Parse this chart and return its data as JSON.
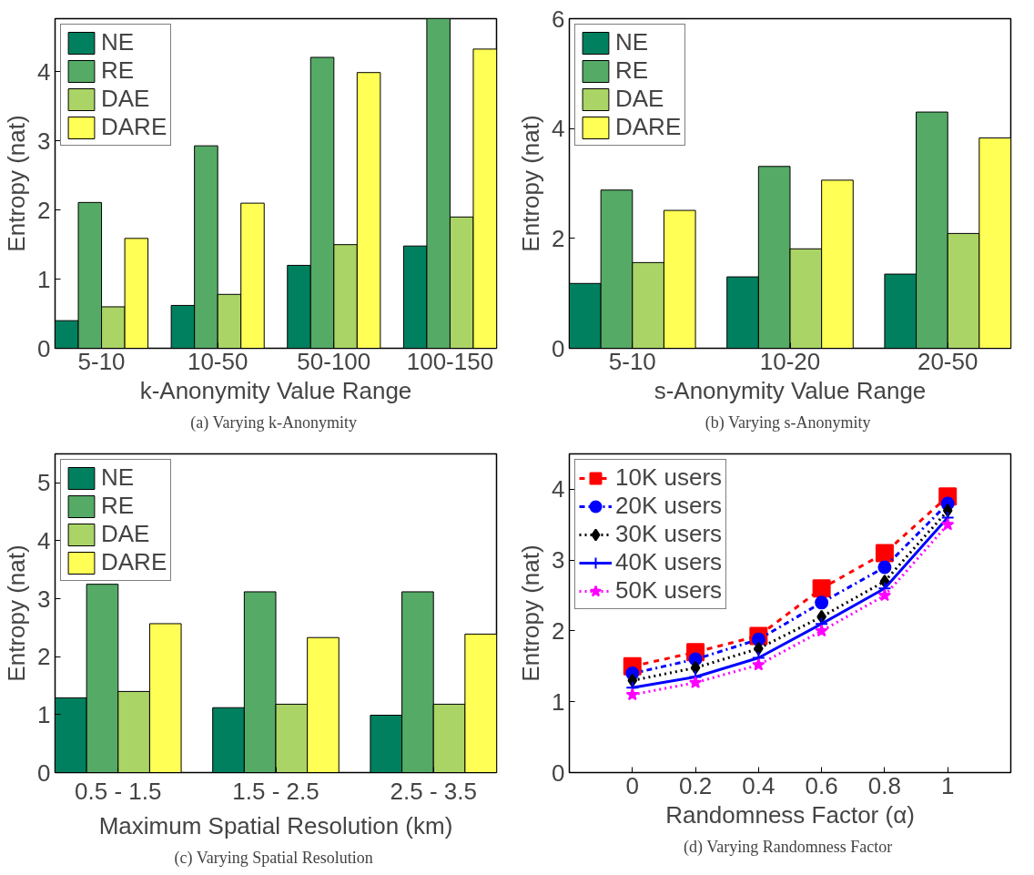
{
  "chart_data": [
    {
      "type": "bar",
      "xlabel": "k-Anonymity Value Range",
      "ylabel": "Entropy (nat)",
      "annotations": [
        "(a)  Varying k-Anonymity"
      ],
      "categories": [
        "5-10",
        "10-50",
        "50-100",
        "100-150"
      ],
      "ylim": [
        0,
        4.77
      ],
      "yticks": [
        0,
        1,
        2,
        3,
        4
      ],
      "grid": false,
      "legend": "top left",
      "series": [
        {
          "name": "NE",
          "color": "#00805f",
          "values": [
            0.4,
            0.62,
            1.2,
            1.48
          ]
        },
        {
          "name": "RE",
          "color": "#55aa66",
          "values": [
            2.11,
            2.93,
            4.21,
            4.77
          ]
        },
        {
          "name": "DAE",
          "color": "#aad466",
          "values": [
            0.6,
            0.78,
            1.5,
            1.9
          ]
        },
        {
          "name": "DARE",
          "color": "#ffff55",
          "values": [
            1.59,
            2.1,
            3.99,
            4.33
          ]
        }
      ]
    },
    {
      "type": "bar",
      "xlabel": "s-Anonymity Value Range",
      "ylabel": "Entropy (nat)",
      "annotations": [
        "(b)  Varying s-Anonymity"
      ],
      "categories": [
        "5-10",
        "10-20",
        "20-50"
      ],
      "ylim": [
        0,
        6
      ],
      "yticks": [
        0,
        2,
        4,
        6
      ],
      "grid": false,
      "legend": "top left",
      "series": [
        {
          "name": "NE",
          "color": "#00805f",
          "values": [
            1.18,
            1.3,
            1.35
          ]
        },
        {
          "name": "RE",
          "color": "#55aa66",
          "values": [
            2.88,
            3.31,
            4.3
          ]
        },
        {
          "name": "DAE",
          "color": "#aad466",
          "values": [
            1.56,
            1.81,
            2.09
          ]
        },
        {
          "name": "DARE",
          "color": "#ffff55",
          "values": [
            2.51,
            3.06,
            3.83
          ]
        }
      ]
    },
    {
      "type": "bar",
      "xlabel": "Maximum Spatial Resolution (km)",
      "ylabel": "Entropy (nat)",
      "annotations": [
        "(c)  Varying Spatial Resolution"
      ],
      "categories": [
        "0.5 - 1.5",
        "1.5 - 2.5",
        "2.5 - 3.5"
      ],
      "ylim": [
        0,
        5.5
      ],
      "yticks": [
        0,
        1,
        2,
        3,
        4,
        5
      ],
      "grid": false,
      "legend": "top left",
      "series": [
        {
          "name": "NE",
          "color": "#00805f",
          "values": [
            1.29,
            1.12,
            0.99
          ]
        },
        {
          "name": "RE",
          "color": "#55aa66",
          "values": [
            3.25,
            3.12,
            3.12
          ]
        },
        {
          "name": "DAE",
          "color": "#aad466",
          "values": [
            1.4,
            1.18,
            1.18
          ]
        },
        {
          "name": "DARE",
          "color": "#ffff55",
          "values": [
            2.57,
            2.33,
            2.39
          ]
        }
      ]
    },
    {
      "type": "line",
      "xlabel": "Randomness Factor (α)",
      "ylabel": "Entropy (nat)",
      "annotations": [
        "(d)  Varying Randomness Factor"
      ],
      "x": [
        0,
        0.2,
        0.4,
        0.6,
        0.8,
        1
      ],
      "xlim": [
        -0.2,
        1.2
      ],
      "xticks": [
        0,
        0.2,
        0.4,
        0.6,
        0.8,
        1
      ],
      "ylim": [
        0,
        4.5
      ],
      "yticks": [
        0,
        1,
        2,
        3,
        4
      ],
      "grid": false,
      "legend": "top left",
      "series": [
        {
          "name": "10K users",
          "color": "#ff0000",
          "marker": "square",
          "line_style": "dashed",
          "values": [
            1.5,
            1.7,
            1.93,
            2.6,
            3.1,
            3.9
          ]
        },
        {
          "name": "20K users",
          "color": "#0000ff",
          "marker": "circle",
          "line_style": "dashdot",
          "values": [
            1.4,
            1.6,
            1.88,
            2.4,
            2.9,
            3.8
          ]
        },
        {
          "name": "30K users",
          "color": "#000000",
          "marker": "diamond",
          "line_style": "dotted",
          "values": [
            1.3,
            1.48,
            1.75,
            2.2,
            2.7,
            3.7
          ]
        },
        {
          "name": "40K users",
          "color": "#0000ff",
          "marker": "cross",
          "line_style": "solid",
          "values": [
            1.2,
            1.35,
            1.62,
            2.1,
            2.6,
            3.6
          ]
        },
        {
          "name": "50K users",
          "color": "#ff00ff",
          "marker": "star",
          "line_style": "dotted",
          "values": [
            1.1,
            1.27,
            1.52,
            2.0,
            2.5,
            3.5
          ]
        }
      ]
    }
  ]
}
